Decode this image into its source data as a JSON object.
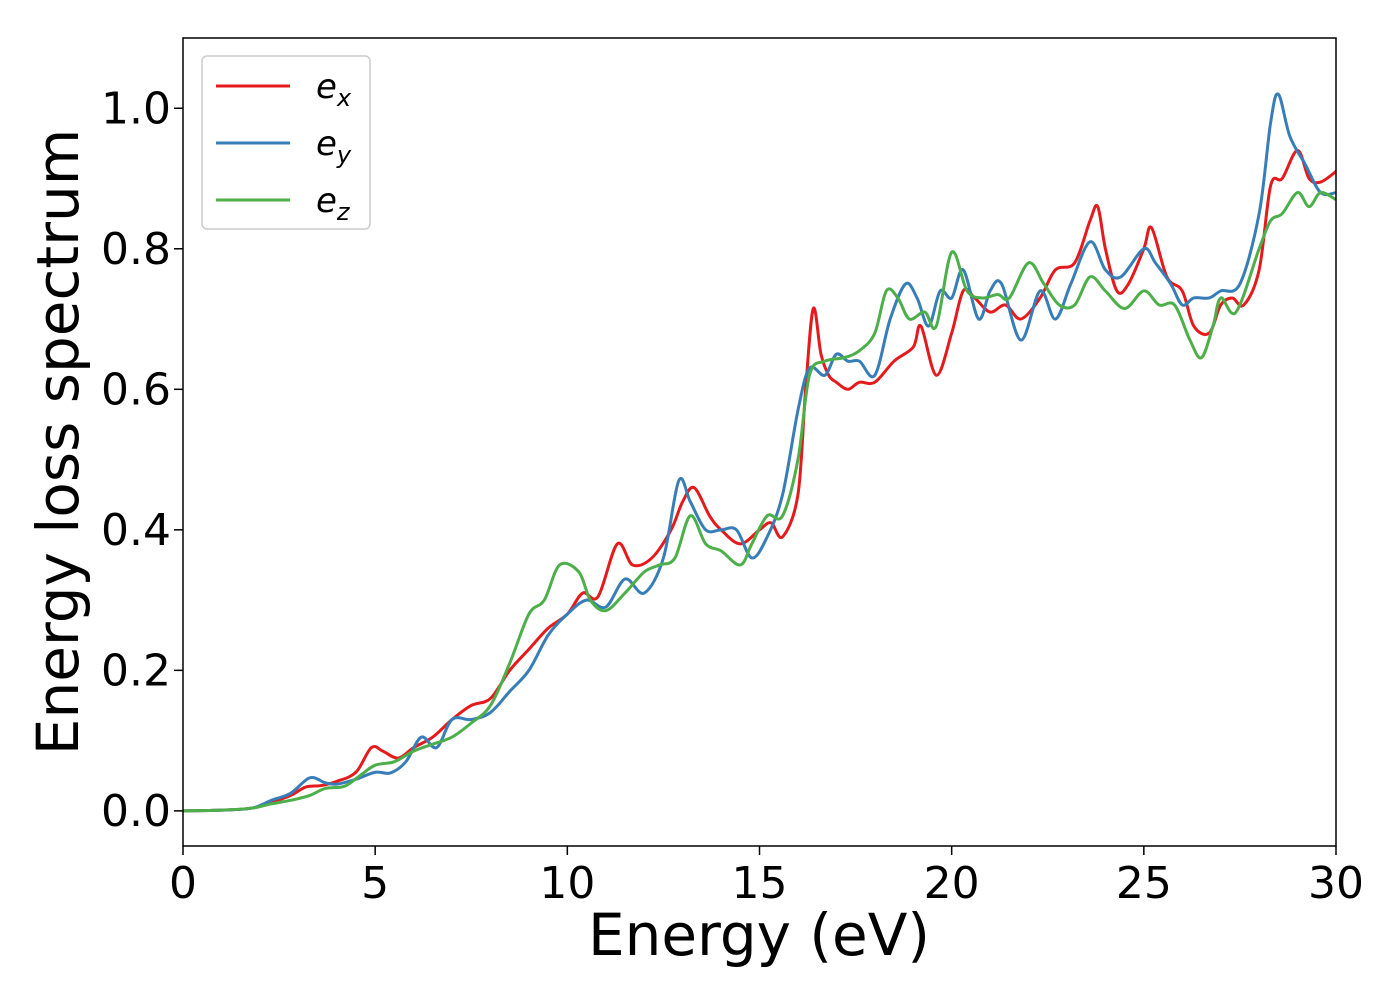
{
  "chart_data": {
    "type": "line",
    "title": "",
    "xlabel": "Energy (eV)",
    "ylabel": "Energy loss spectrum",
    "xlim": [
      0,
      30
    ],
    "ylim": [
      -0.05,
      1.1
    ],
    "xticks": [
      0,
      5,
      10,
      15,
      20,
      25,
      30
    ],
    "xtick_labels": [
      "0",
      "5",
      "10",
      "15",
      "20",
      "25",
      "30"
    ],
    "yticks": [
      0.0,
      0.2,
      0.4,
      0.6,
      0.8,
      1.0
    ],
    "ytick_labels": [
      "0.0",
      "0.2",
      "0.4",
      "0.6",
      "0.8",
      "1.0"
    ],
    "grid": false,
    "legend_position": "top-left",
    "series": [
      {
        "name": "e_x",
        "label_main": "e",
        "label_sub": "x",
        "color": "#e41a1c",
        "points": [
          [
            0,
            0.0
          ],
          [
            1,
            0.001
          ],
          [
            1.8,
            0.004
          ],
          [
            2.3,
            0.012
          ],
          [
            2.8,
            0.022
          ],
          [
            3.2,
            0.034
          ],
          [
            3.6,
            0.036
          ],
          [
            4.0,
            0.042
          ],
          [
            4.5,
            0.055
          ],
          [
            4.9,
            0.09
          ],
          [
            5.2,
            0.085
          ],
          [
            5.6,
            0.075
          ],
          [
            6.0,
            0.09
          ],
          [
            6.5,
            0.105
          ],
          [
            7.0,
            0.13
          ],
          [
            7.5,
            0.15
          ],
          [
            8.0,
            0.16
          ],
          [
            8.5,
            0.2
          ],
          [
            9.0,
            0.23
          ],
          [
            9.5,
            0.26
          ],
          [
            10.0,
            0.28
          ],
          [
            10.4,
            0.31
          ],
          [
            10.8,
            0.305
          ],
          [
            11.3,
            0.38
          ],
          [
            11.7,
            0.35
          ],
          [
            12.2,
            0.36
          ],
          [
            12.7,
            0.4
          ],
          [
            13.0,
            0.44
          ],
          [
            13.3,
            0.46
          ],
          [
            13.7,
            0.42
          ],
          [
            14.0,
            0.4
          ],
          [
            14.5,
            0.38
          ],
          [
            15.0,
            0.4
          ],
          [
            15.3,
            0.41
          ],
          [
            15.6,
            0.39
          ],
          [
            16.0,
            0.45
          ],
          [
            16.2,
            0.6
          ],
          [
            16.4,
            0.715
          ],
          [
            16.6,
            0.65
          ],
          [
            16.8,
            0.62
          ],
          [
            17.0,
            0.61
          ],
          [
            17.3,
            0.6
          ],
          [
            17.6,
            0.61
          ],
          [
            18.0,
            0.61
          ],
          [
            18.5,
            0.64
          ],
          [
            19.0,
            0.66
          ],
          [
            19.2,
            0.69
          ],
          [
            19.6,
            0.62
          ],
          [
            20.0,
            0.68
          ],
          [
            20.3,
            0.74
          ],
          [
            20.6,
            0.73
          ],
          [
            21.0,
            0.71
          ],
          [
            21.4,
            0.72
          ],
          [
            21.8,
            0.7
          ],
          [
            22.3,
            0.73
          ],
          [
            22.7,
            0.77
          ],
          [
            23.2,
            0.78
          ],
          [
            23.6,
            0.84
          ],
          [
            23.8,
            0.86
          ],
          [
            24.0,
            0.8
          ],
          [
            24.3,
            0.74
          ],
          [
            24.6,
            0.75
          ],
          [
            25.0,
            0.8
          ],
          [
            25.2,
            0.83
          ],
          [
            25.6,
            0.76
          ],
          [
            26.0,
            0.74
          ],
          [
            26.3,
            0.69
          ],
          [
            26.7,
            0.68
          ],
          [
            27.0,
            0.72
          ],
          [
            27.3,
            0.73
          ],
          [
            27.6,
            0.72
          ],
          [
            28.0,
            0.77
          ],
          [
            28.3,
            0.89
          ],
          [
            28.6,
            0.9
          ],
          [
            29.0,
            0.94
          ],
          [
            29.3,
            0.9
          ],
          [
            29.6,
            0.895
          ],
          [
            30.0,
            0.91
          ]
        ]
      },
      {
        "name": "e_y",
        "label_main": "e",
        "label_sub": "y",
        "color": "#377eb8",
        "points": [
          [
            0,
            0.0
          ],
          [
            1,
            0.001
          ],
          [
            1.8,
            0.004
          ],
          [
            2.3,
            0.015
          ],
          [
            2.8,
            0.025
          ],
          [
            3.3,
            0.047
          ],
          [
            3.7,
            0.04
          ],
          [
            4.0,
            0.038
          ],
          [
            4.5,
            0.045
          ],
          [
            5.0,
            0.055
          ],
          [
            5.4,
            0.054
          ],
          [
            5.8,
            0.07
          ],
          [
            6.2,
            0.105
          ],
          [
            6.6,
            0.09
          ],
          [
            7.0,
            0.13
          ],
          [
            7.5,
            0.13
          ],
          [
            8.0,
            0.14
          ],
          [
            8.5,
            0.17
          ],
          [
            9.0,
            0.2
          ],
          [
            9.5,
            0.25
          ],
          [
            10.0,
            0.28
          ],
          [
            10.5,
            0.3
          ],
          [
            11.0,
            0.29
          ],
          [
            11.5,
            0.33
          ],
          [
            12.0,
            0.31
          ],
          [
            12.5,
            0.36
          ],
          [
            12.9,
            0.47
          ],
          [
            13.2,
            0.44
          ],
          [
            13.6,
            0.4
          ],
          [
            14.0,
            0.4
          ],
          [
            14.4,
            0.4
          ],
          [
            14.8,
            0.36
          ],
          [
            15.2,
            0.39
          ],
          [
            15.6,
            0.45
          ],
          [
            16.0,
            0.57
          ],
          [
            16.3,
            0.63
          ],
          [
            16.7,
            0.62
          ],
          [
            17.0,
            0.65
          ],
          [
            17.3,
            0.64
          ],
          [
            17.6,
            0.64
          ],
          [
            18.0,
            0.62
          ],
          [
            18.4,
            0.7
          ],
          [
            18.8,
            0.75
          ],
          [
            19.1,
            0.73
          ],
          [
            19.4,
            0.69
          ],
          [
            19.7,
            0.74
          ],
          [
            20.0,
            0.73
          ],
          [
            20.3,
            0.77
          ],
          [
            20.7,
            0.7
          ],
          [
            21.0,
            0.74
          ],
          [
            21.3,
            0.75
          ],
          [
            21.8,
            0.67
          ],
          [
            22.3,
            0.74
          ],
          [
            22.7,
            0.7
          ],
          [
            23.1,
            0.75
          ],
          [
            23.6,
            0.81
          ],
          [
            24.0,
            0.77
          ],
          [
            24.4,
            0.76
          ],
          [
            25.0,
            0.8
          ],
          [
            25.3,
            0.78
          ],
          [
            25.7,
            0.75
          ],
          [
            26.0,
            0.72
          ],
          [
            26.3,
            0.73
          ],
          [
            26.7,
            0.73
          ],
          [
            27.0,
            0.74
          ],
          [
            27.5,
            0.75
          ],
          [
            28.0,
            0.85
          ],
          [
            28.3,
            0.98
          ],
          [
            28.5,
            1.02
          ],
          [
            28.8,
            0.96
          ],
          [
            29.2,
            0.92
          ],
          [
            29.6,
            0.88
          ],
          [
            30.0,
            0.88
          ]
        ]
      },
      {
        "name": "e_z",
        "label_main": "e",
        "label_sub": "z",
        "color": "#4daf4a",
        "points": [
          [
            0,
            0.0
          ],
          [
            1,
            0.001
          ],
          [
            1.8,
            0.004
          ],
          [
            2.3,
            0.01
          ],
          [
            2.8,
            0.015
          ],
          [
            3.3,
            0.022
          ],
          [
            3.7,
            0.032
          ],
          [
            4.2,
            0.035
          ],
          [
            4.6,
            0.05
          ],
          [
            5.0,
            0.065
          ],
          [
            5.5,
            0.07
          ],
          [
            6.0,
            0.085
          ],
          [
            6.5,
            0.095
          ],
          [
            7.0,
            0.105
          ],
          [
            7.5,
            0.125
          ],
          [
            8.0,
            0.15
          ],
          [
            8.5,
            0.21
          ],
          [
            9.0,
            0.28
          ],
          [
            9.4,
            0.3
          ],
          [
            9.8,
            0.35
          ],
          [
            10.3,
            0.34
          ],
          [
            10.6,
            0.3
          ],
          [
            11.0,
            0.285
          ],
          [
            11.5,
            0.31
          ],
          [
            12.0,
            0.34
          ],
          [
            12.4,
            0.35
          ],
          [
            12.8,
            0.36
          ],
          [
            13.2,
            0.42
          ],
          [
            13.6,
            0.38
          ],
          [
            14.0,
            0.37
          ],
          [
            14.5,
            0.35
          ],
          [
            14.8,
            0.38
          ],
          [
            15.2,
            0.42
          ],
          [
            15.6,
            0.42
          ],
          [
            16.0,
            0.5
          ],
          [
            16.3,
            0.62
          ],
          [
            16.7,
            0.64
          ],
          [
            17.2,
            0.645
          ],
          [
            17.6,
            0.655
          ],
          [
            18.0,
            0.68
          ],
          [
            18.3,
            0.74
          ],
          [
            18.6,
            0.73
          ],
          [
            18.9,
            0.7
          ],
          [
            19.3,
            0.71
          ],
          [
            19.6,
            0.69
          ],
          [
            20.0,
            0.795
          ],
          [
            20.4,
            0.74
          ],
          [
            20.8,
            0.73
          ],
          [
            21.2,
            0.735
          ],
          [
            21.5,
            0.73
          ],
          [
            22.0,
            0.78
          ],
          [
            22.4,
            0.75
          ],
          [
            22.8,
            0.72
          ],
          [
            23.2,
            0.72
          ],
          [
            23.6,
            0.76
          ],
          [
            24.0,
            0.74
          ],
          [
            24.5,
            0.715
          ],
          [
            25.0,
            0.74
          ],
          [
            25.4,
            0.72
          ],
          [
            25.8,
            0.72
          ],
          [
            26.2,
            0.67
          ],
          [
            26.5,
            0.645
          ],
          [
            26.8,
            0.69
          ],
          [
            27.0,
            0.73
          ],
          [
            27.4,
            0.71
          ],
          [
            28.0,
            0.8
          ],
          [
            28.3,
            0.84
          ],
          [
            28.6,
            0.85
          ],
          [
            29.0,
            0.88
          ],
          [
            29.3,
            0.86
          ],
          [
            29.6,
            0.88
          ],
          [
            30.0,
            0.87
          ]
        ]
      }
    ]
  }
}
